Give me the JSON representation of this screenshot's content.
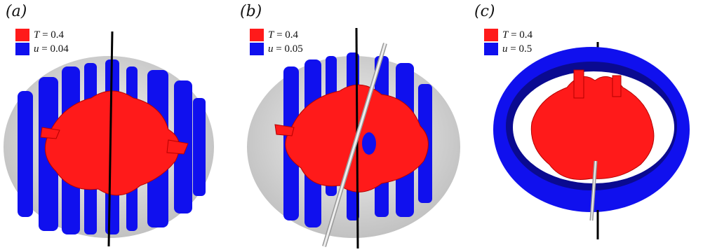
{
  "colors": {
    "temperature": "#ff1a1a",
    "velocity": "#1010ee",
    "shell": "#d8d8d8"
  },
  "panels": [
    {
      "label": "(a)",
      "legend": [
        {
          "var": "T",
          "text": " = 0.4"
        },
        {
          "var": "u",
          "text": " = 0.04"
        }
      ]
    },
    {
      "label": "(b)",
      "legend": [
        {
          "var": "T",
          "text": " = 0.4"
        },
        {
          "var": "u",
          "text": " = 0.05"
        }
      ]
    },
    {
      "label": "(c)",
      "legend": [
        {
          "var": "T",
          "text": " = 0.4"
        },
        {
          "var": "u",
          "text": " = 0.5"
        }
      ]
    }
  ]
}
